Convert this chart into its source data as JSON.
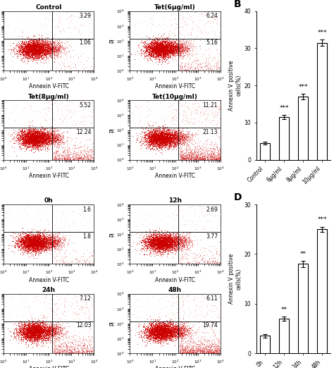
{
  "flow_titles_top": [
    "Control",
    "Tet(6μg/ml)",
    "Tet(8μg/ml)",
    "Tet(10μg/ml)"
  ],
  "flow_numbers_top": [
    {
      "ur": "3.29",
      "lr": "1.06"
    },
    {
      "ur": "6.24",
      "lr": "5.16"
    },
    {
      "ur": "5.52",
      "lr": "12.24"
    },
    {
      "ur": "11.21",
      "lr": "21.13"
    }
  ],
  "flow_titles_bottom": [
    "0h",
    "12h",
    "24h",
    "48h"
  ],
  "flow_numbers_bottom": [
    {
      "ur": "1.6",
      "lr": "1.8"
    },
    {
      "ur": "2.69",
      "lr": "3.77"
    },
    {
      "ur": "7.12",
      "lr": "12.03"
    },
    {
      "ur": "6.11",
      "lr": "19.74"
    }
  ],
  "bar_B_categories": [
    "Control",
    "6μg/ml",
    "8μg/ml",
    "10μg/ml"
  ],
  "bar_B_values": [
    4.5,
    11.5,
    17.0,
    31.5
  ],
  "bar_B_errors": [
    0.3,
    0.5,
    0.7,
    0.8
  ],
  "bar_B_stars": [
    "",
    "***",
    "***",
    "***"
  ],
  "bar_B_ylabel": "Annexin V positive\ncells(%)",
  "bar_B_ylim": [
    0,
    40
  ],
  "bar_D_categories": [
    "0h",
    "12h",
    "24h",
    "48h"
  ],
  "bar_D_values": [
    3.5,
    7.0,
    18.0,
    25.0
  ],
  "bar_D_errors": [
    0.3,
    0.4,
    0.6,
    0.5
  ],
  "bar_D_stars": [
    "",
    "**",
    "**",
    "***"
  ],
  "bar_D_ylabel": "Annexin V positive\ncells(%)",
  "bar_D_ylim": [
    0,
    30
  ],
  "dot_color": "#cc0000",
  "bar_color": "white",
  "bar_edge_color": "black"
}
